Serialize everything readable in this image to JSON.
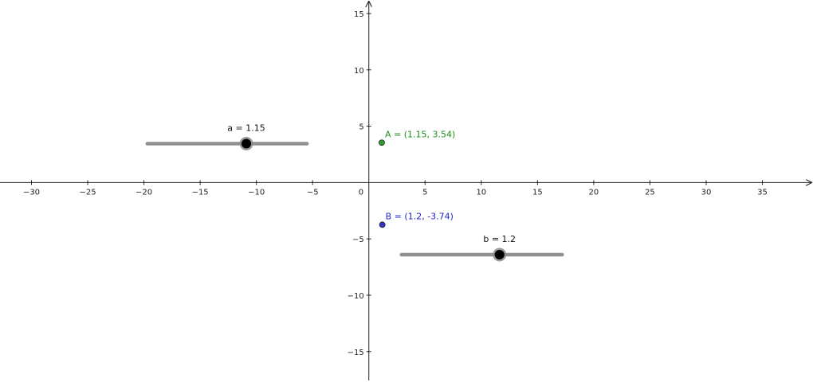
{
  "graphics_view": {
    "axes": {
      "x_ticks": [
        -30,
        -25,
        -20,
        -15,
        -10,
        -5,
        5,
        10,
        15,
        20,
        25,
        30,
        35
      ],
      "x_tick_labels": [
        "−30",
        "−25",
        "−20",
        "−15",
        "−10",
        "−5",
        "5",
        "10",
        "15",
        "20",
        "25",
        "30",
        "35"
      ],
      "y_ticks": [
        15,
        10,
        5,
        -5,
        -10,
        -15
      ],
      "y_tick_labels": [
        "15",
        "10",
        "5",
        "−5",
        "−10",
        "−15"
      ],
      "origin_label": "0",
      "xlim": [
        -32.8,
        39.5
      ],
      "ylim": [
        -17.7,
        16.2
      ]
    },
    "sliders": [
      {
        "name": "a",
        "label": "a = 1.15",
        "value": 1.15,
        "fraction": 0.62,
        "track_from": [
          -19.7,
          3.45
        ],
        "track_to": [
          -5.5,
          3.45
        ]
      },
      {
        "name": "b",
        "label": "b = 1.2",
        "value": 1.2,
        "fraction": 0.61,
        "track_from": [
          2.9,
          -6.4
        ],
        "track_to": [
          17.2,
          -6.4
        ]
      }
    ],
    "points": [
      {
        "name": "A",
        "label": "A = (1.15, 3.54)",
        "x": 1.15,
        "y": 3.54,
        "color": "#2e9e2e",
        "label_color": "#1a8c1a"
      },
      {
        "name": "B",
        "label": "B = (1.2, -3.74)",
        "x": 1.2,
        "y": -3.74,
        "color": "#3333cc",
        "label_color": "#1f1fc8"
      }
    ],
    "colors": {
      "axis": "#222222",
      "slider_track": "#909090",
      "slider_knob": "#000000",
      "slider_knob_ring": "#8a8a8a"
    }
  }
}
